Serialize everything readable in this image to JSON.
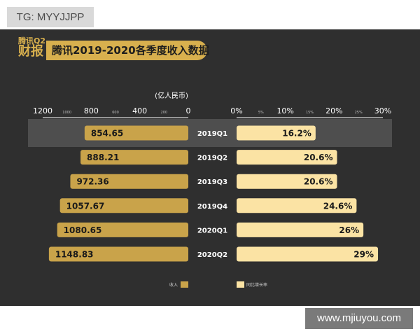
{
  "badge": {
    "text": "TG: MYYJJPP"
  },
  "logo": {
    "line1": "腾讯Q2",
    "line2": "财报"
  },
  "watermark": {
    "text": "www.mjiuyou.com"
  },
  "colors": {
    "background": "#2f2f2f",
    "revenue_bar": "#c9a34a",
    "growth_bar": "#fbe3a4",
    "accent": "#d8b04e",
    "axis_text": "#ffffff",
    "highlight_row": "#595959"
  },
  "chart_data": {
    "type": "bar",
    "title": "腾讯2019-2020各季度收入数据",
    "unit_label": "(亿人民币)",
    "categories": [
      "2019Q1",
      "2019Q2",
      "2019Q3",
      "2019Q4",
      "2020Q1",
      "2020Q2"
    ],
    "highlighted_category": "2019Q1",
    "series": [
      {
        "name": "收入",
        "direction": "left",
        "values": [
          854.65,
          888.21,
          972.36,
          1057.67,
          1080.65,
          1148.83
        ],
        "labels": [
          "854.65",
          "888.21",
          "972.36",
          "1057.67",
          "1080.65",
          "1148.83"
        ],
        "axis": {
          "range": [
            0,
            1200
          ],
          "major_ticks": [
            1200,
            800,
            400,
            0
          ],
          "major_tick_labels": [
            "1200",
            "800",
            "400",
            "0"
          ],
          "minor_ticks": [
            1000,
            600,
            200
          ],
          "minor_tick_labels": [
            "1000",
            "600",
            "200"
          ]
        }
      },
      {
        "name": "同比增长率",
        "direction": "right",
        "values": [
          16.2,
          20.6,
          20.6,
          24.6,
          26,
          29
        ],
        "labels": [
          "16.2%",
          "20.6%",
          "20.6%",
          "24.6%",
          "26%",
          "29%"
        ],
        "axis": {
          "range": [
            0,
            30
          ],
          "major_ticks": [
            0,
            10,
            20,
            30
          ],
          "major_tick_labels": [
            "0%",
            "10%",
            "20%",
            "30%"
          ],
          "minor_ticks": [
            5,
            15,
            25
          ],
          "minor_tick_labels": [
            "5%",
            "15%",
            "25%"
          ]
        }
      }
    ],
    "legend": [
      "收入",
      "同比增长率"
    ],
    "legend_position": "bottom"
  }
}
